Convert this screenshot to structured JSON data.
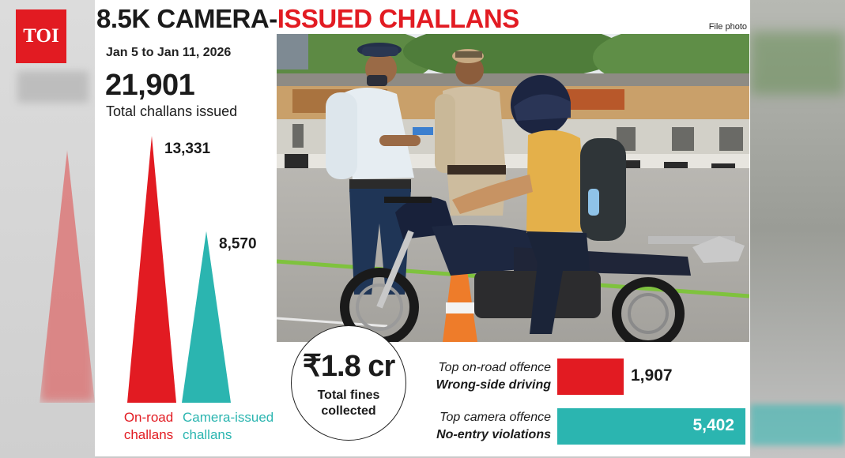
{
  "brand": {
    "logo_text": "TOI",
    "brand_color": "#e21b22"
  },
  "headline": {
    "part1": "8.5K CAMERA-",
    "part2": "ISSUED CHALLANS"
  },
  "photo_credit": "File photo",
  "period": "Jan 5 to Jan 11, 2026",
  "total": {
    "value": "21,901",
    "label": "Total challans issued"
  },
  "fines": {
    "amount": "₹1.8 cr",
    "label_line1": "Total fines",
    "label_line2": "collected"
  },
  "offences": {
    "onroad": {
      "title": "Top on-road offence",
      "name": "Wrong-side driving",
      "value_label": "1,907"
    },
    "camera": {
      "title": "Top camera offence",
      "name": "No-entry violations",
      "value_label": "5,402"
    }
  },
  "colors": {
    "onroad": "#e21b22",
    "camera": "#2bb5b0",
    "text": "#1b1b1b"
  },
  "chart_data": [
    {
      "type": "bar",
      "categories": [
        "On-road challans",
        "Camera-issued challans"
      ],
      "category_lines": [
        [
          "On-road",
          "challans"
        ],
        [
          "Camera-issued",
          "challans"
        ]
      ],
      "values": [
        13331,
        8570
      ],
      "value_labels": [
        "13,331",
        "8,570"
      ],
      "colors": [
        "#e21b22",
        "#2bb5b0"
      ],
      "title": "",
      "xlabel": "",
      "ylabel": ""
    },
    {
      "type": "bar",
      "orientation": "horizontal",
      "categories": [
        "Wrong-side driving",
        "No-entry violations"
      ],
      "values": [
        1907,
        5402
      ],
      "colors": [
        "#e21b22",
        "#2bb5b0"
      ],
      "title": "",
      "xlabel": "",
      "ylabel": ""
    }
  ]
}
